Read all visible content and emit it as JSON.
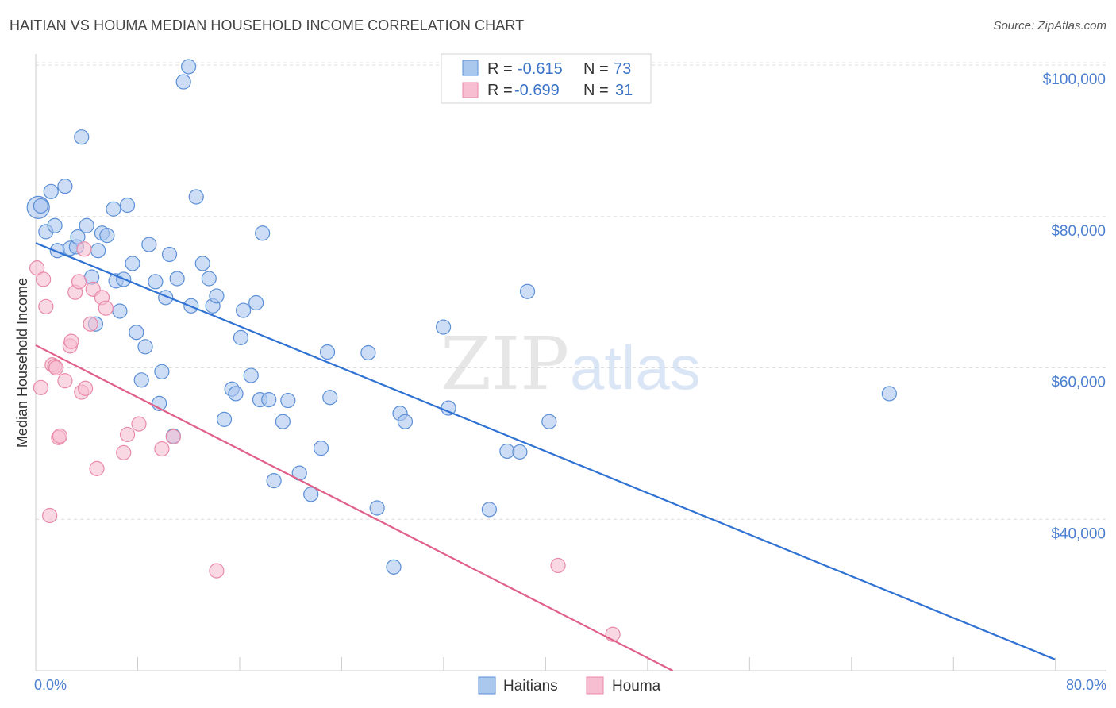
{
  "title": "HAITIAN VS HOUMA MEDIAN HOUSEHOLD INCOME CORRELATION CHART",
  "source": "Source: ZipAtlas.com",
  "watermark": {
    "zip": "ZIP",
    "atlas": "atlas"
  },
  "colors": {
    "blue_fill": "#aac7ee",
    "blue_stroke": "#5b8fd6",
    "blue_line": "#2f72d4",
    "pink_fill": "#f6bed0",
    "pink_stroke": "#e88aa8",
    "pink_line": "#e0608a",
    "tick_text": "#4a7fd0",
    "grid": "#dddddd"
  },
  "legend": {
    "rows": [
      {
        "r_label": "R =",
        "r_value": "-0.615",
        "n_label": "N =",
        "n_value": "73"
      },
      {
        "r_label": "R =",
        "r_value": "-0.699",
        "n_label": "N =",
        "n_value": "31"
      }
    ]
  },
  "chart_data": {
    "type": "scatter",
    "title": "HAITIAN VS HOUMA MEDIAN HOUSEHOLD INCOME CORRELATION CHART",
    "xlabel": "",
    "ylabel": "Median Household Income",
    "xlim": [
      0,
      80
    ],
    "ylim": [
      20000,
      102000
    ],
    "x_tick_labels": [
      "0.0%",
      "80.0%"
    ],
    "y_ticks": [
      40000,
      60000,
      80000,
      100000
    ],
    "y_tick_labels": [
      "$40,000",
      "$60,000",
      "$80,000",
      "$100,000"
    ],
    "grid": true,
    "legend_position": "top-center",
    "series": [
      {
        "name": "Haitians",
        "r": -0.615,
        "n": 73,
        "trend": {
          "x": [
            0,
            80
          ],
          "y": [
            76500,
            21500
          ]
        },
        "points": [
          [
            0.2,
            81200
          ],
          [
            0.4,
            81400
          ],
          [
            0.8,
            78000
          ],
          [
            1.2,
            83300
          ],
          [
            1.5,
            78800
          ],
          [
            1.7,
            75500
          ],
          [
            2.3,
            84000
          ],
          [
            2.7,
            75800
          ],
          [
            3.2,
            76000
          ],
          [
            3.3,
            77300
          ],
          [
            3.6,
            90500
          ],
          [
            4.0,
            78800
          ],
          [
            4.4,
            72000
          ],
          [
            4.7,
            65800
          ],
          [
            4.9,
            75500
          ],
          [
            5.2,
            77800
          ],
          [
            5.6,
            77500
          ],
          [
            6.1,
            81000
          ],
          [
            6.3,
            71500
          ],
          [
            6.6,
            67500
          ],
          [
            6.9,
            71700
          ],
          [
            7.2,
            81500
          ],
          [
            7.6,
            73800
          ],
          [
            7.9,
            64700
          ],
          [
            8.3,
            58400
          ],
          [
            8.6,
            62800
          ],
          [
            8.9,
            76300
          ],
          [
            9.4,
            71400
          ],
          [
            9.7,
            55300
          ],
          [
            9.9,
            59500
          ],
          [
            10.2,
            69300
          ],
          [
            10.5,
            75000
          ],
          [
            10.8,
            51000
          ],
          [
            11.1,
            71800
          ],
          [
            11.6,
            97800
          ],
          [
            12.0,
            99800
          ],
          [
            12.2,
            68200
          ],
          [
            12.6,
            82600
          ],
          [
            13.1,
            73800
          ],
          [
            13.6,
            71800
          ],
          [
            13.9,
            68200
          ],
          [
            14.2,
            69500
          ],
          [
            14.8,
            53200
          ],
          [
            15.4,
            57200
          ],
          [
            15.7,
            56600
          ],
          [
            16.1,
            64000
          ],
          [
            16.3,
            67600
          ],
          [
            16.9,
            59000
          ],
          [
            17.3,
            68600
          ],
          [
            17.6,
            55800
          ],
          [
            17.8,
            77800
          ],
          [
            18.3,
            55800
          ],
          [
            18.7,
            45100
          ],
          [
            19.4,
            52900
          ],
          [
            19.8,
            55700
          ],
          [
            20.7,
            46100
          ],
          [
            21.6,
            43300
          ],
          [
            22.4,
            49400
          ],
          [
            22.9,
            62100
          ],
          [
            23.1,
            56100
          ],
          [
            26.1,
            62000
          ],
          [
            26.8,
            41500
          ],
          [
            28.1,
            33700
          ],
          [
            28.6,
            54000
          ],
          [
            29.0,
            52900
          ],
          [
            32.0,
            65400
          ],
          [
            32.4,
            54700
          ],
          [
            35.6,
            41300
          ],
          [
            37.0,
            49000
          ],
          [
            38.0,
            48900
          ],
          [
            38.6,
            70100
          ],
          [
            40.3,
            52900
          ],
          [
            67.0,
            56600
          ]
        ]
      },
      {
        "name": "Houma",
        "r": -0.699,
        "n": 31,
        "trend": {
          "x": [
            0,
            50
          ],
          "y": [
            63000,
            20000
          ]
        },
        "points": [
          [
            0.1,
            73200
          ],
          [
            0.4,
            57400
          ],
          [
            0.6,
            71700
          ],
          [
            0.8,
            68100
          ],
          [
            1.1,
            40500
          ],
          [
            1.3,
            60400
          ],
          [
            1.5,
            60200
          ],
          [
            1.6,
            60000
          ],
          [
            1.8,
            50800
          ],
          [
            1.9,
            51000
          ],
          [
            2.3,
            58300
          ],
          [
            2.7,
            62900
          ],
          [
            2.8,
            63500
          ],
          [
            3.1,
            70000
          ],
          [
            3.4,
            71400
          ],
          [
            3.6,
            56800
          ],
          [
            3.8,
            75700
          ],
          [
            3.9,
            57300
          ],
          [
            4.3,
            65800
          ],
          [
            4.5,
            70400
          ],
          [
            4.8,
            46700
          ],
          [
            5.2,
            69300
          ],
          [
            5.5,
            67900
          ],
          [
            6.9,
            48800
          ],
          [
            7.2,
            51200
          ],
          [
            8.1,
            52600
          ],
          [
            9.9,
            49300
          ],
          [
            10.8,
            50900
          ],
          [
            14.2,
            33200
          ],
          [
            41.0,
            33900
          ],
          [
            45.3,
            24800
          ]
        ]
      }
    ]
  },
  "bottom_legend": [
    {
      "label": "Haitians"
    },
    {
      "label": "Houma"
    }
  ]
}
